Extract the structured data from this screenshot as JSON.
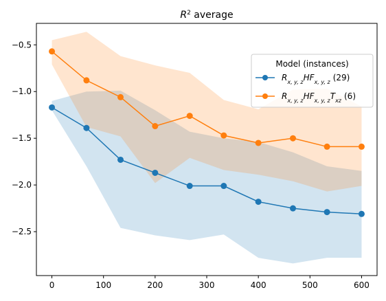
{
  "chart_data": {
    "type": "line",
    "title": "R² average",
    "xlabel": "",
    "ylabel": "",
    "xlim": [
      -30,
      630
    ],
    "ylim": [
      -2.97,
      -0.27
    ],
    "xticks": [
      0,
      100,
      200,
      300,
      400,
      500,
      600
    ],
    "yticks": [
      -2.5,
      -2.0,
      -1.5,
      -1.0,
      -0.5
    ],
    "ytick_labels": [
      "−2.5",
      "−2.0",
      "−1.5",
      "−1.0",
      "−0.5"
    ],
    "grid": false,
    "legend": {
      "title": "Model (instances)",
      "placement": "upper right"
    },
    "series": [
      {
        "name": "R_{x,y,z}HF_{x,y,z} (29)",
        "legend_label": "(29)",
        "color": "#1f77b4",
        "x": [
          0,
          67,
          133,
          200,
          267,
          333,
          400,
          467,
          533,
          600
        ],
        "y": [
          -1.17,
          -1.39,
          -1.73,
          -1.87,
          -2.01,
          -2.01,
          -2.18,
          -2.25,
          -2.29,
          -2.31
        ],
        "band_upper": [
          -1.1,
          -1.0,
          -0.99,
          -1.2,
          -1.43,
          -1.5,
          -1.54,
          -1.65,
          -1.8,
          -1.85
        ],
        "band_lower": [
          -1.2,
          -1.8,
          -2.46,
          -2.54,
          -2.59,
          -2.53,
          -2.78,
          -2.84,
          -2.78,
          -2.78
        ]
      },
      {
        "name": "R_{x,y,z}HF_{x,y,z}T_{xz} (6)",
        "legend_label": "(6)",
        "color": "#ff7f0e",
        "x": [
          0,
          67,
          133,
          200,
          267,
          333,
          400,
          467,
          533,
          600
        ],
        "y": [
          -0.57,
          -0.88,
          -1.06,
          -1.37,
          -1.26,
          -1.47,
          -1.55,
          -1.5,
          -1.59,
          -1.59
        ],
        "band_upper": [
          -0.45,
          -0.36,
          -0.62,
          -0.72,
          -0.8,
          -1.09,
          -1.19,
          -0.98,
          -0.97,
          -1.16
        ],
        "band_lower": [
          -0.71,
          -1.38,
          -1.48,
          -1.98,
          -1.71,
          -1.84,
          -1.89,
          -1.96,
          -2.07,
          -2.01
        ]
      }
    ]
  }
}
